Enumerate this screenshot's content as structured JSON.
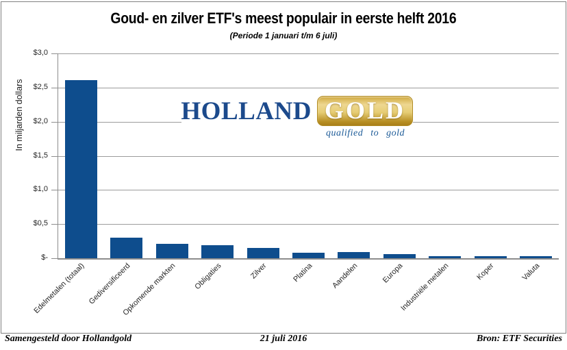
{
  "chart": {
    "title": "Goud- en zilver ETF's meest populair in eerste helft 2016",
    "subtitle": "(Periode 1 januari t/m 6 juli)"
  },
  "chart_data": {
    "type": "bar",
    "title": "Goud- en zilver ETF's meest populair in eerste helft 2016",
    "subtitle": "(Periode 1 januari t/m 6 juli)",
    "ylabel": "In miljarden dollars",
    "xlabel": "",
    "ylim": [
      0,
      3.0
    ],
    "grid": true,
    "legend_position": "none",
    "bar_color": "#0E4D8D",
    "y_ticks": [
      {
        "value": 3.0,
        "label": "$3,0"
      },
      {
        "value": 2.5,
        "label": "$2,5"
      },
      {
        "value": 2.0,
        "label": "$2,0"
      },
      {
        "value": 1.5,
        "label": "$1,5"
      },
      {
        "value": 1.0,
        "label": "$1,0"
      },
      {
        "value": 0.5,
        "label": "$0,5"
      },
      {
        "value": 0.0,
        "label": "$-"
      }
    ],
    "categories": [
      "Edelmetalen (totaal)",
      "Gediversificeerd",
      "Opkomende markten",
      "Obligaties",
      "Zilver",
      "Platina",
      "Aandelen",
      "Europa",
      "Industriële metalen",
      "Koper",
      "Valuta"
    ],
    "values": [
      2.61,
      0.3,
      0.21,
      0.19,
      0.15,
      0.08,
      0.09,
      0.06,
      0.03,
      0.03,
      0.03
    ]
  },
  "logo": {
    "holland": "HOLLAND",
    "gold": "GOLD",
    "tagline": "qualified to gold",
    "blue": "#1c4a8c",
    "gold_color": "#d4ab42"
  },
  "footer": {
    "left": "Samengesteld door Hollandgold",
    "center": "21 juli 2016",
    "right": "Bron: ETF Securities"
  }
}
